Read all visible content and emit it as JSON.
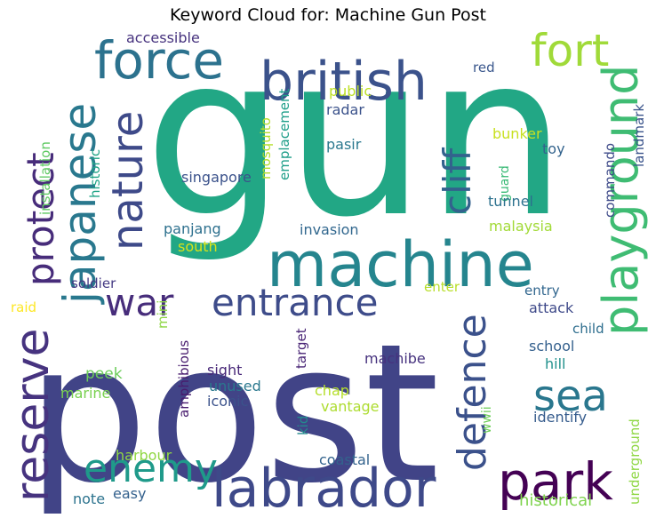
{
  "title": "Keyword Cloud for: Machine Gun Post",
  "words": [
    {
      "text": "gun",
      "color": "#22a785"
    },
    {
      "text": "post",
      "color": "#414487"
    },
    {
      "text": "machine",
      "color": "#25858e"
    },
    {
      "text": "british",
      "color": "#3b528b"
    },
    {
      "text": "force",
      "color": "#2c728e"
    },
    {
      "text": "fort",
      "color": "#a0da39"
    },
    {
      "text": "japanese",
      "color": "#29788e"
    },
    {
      "text": "nature",
      "color": "#3e4a89"
    },
    {
      "text": "protect",
      "color": "#472c7a"
    },
    {
      "text": "cliff",
      "color": "#33628d"
    },
    {
      "text": "playground",
      "color": "#3fbc73"
    },
    {
      "text": "war",
      "color": "#472d7b"
    },
    {
      "text": "entrance",
      "color": "#3e4c8a"
    },
    {
      "text": "reserve",
      "color": "#46337f"
    },
    {
      "text": "sea",
      "color": "#2a778e"
    },
    {
      "text": "defence",
      "color": "#3b518b"
    },
    {
      "text": "enemy",
      "color": "#1f9a8a"
    },
    {
      "text": "labrador",
      "color": "#3e4989"
    },
    {
      "text": "park",
      "color": "#440154"
    },
    {
      "text": "accessible",
      "color": "#46327e"
    },
    {
      "text": "installation",
      "color": "#5ec962"
    },
    {
      "text": "historic",
      "color": "#20a486"
    },
    {
      "text": "red",
      "color": "#39568c"
    },
    {
      "text": "landmark",
      "color": "#3a538b"
    },
    {
      "text": "public",
      "color": "#bddf26"
    },
    {
      "text": "radar",
      "color": "#3b528b"
    },
    {
      "text": "emplacement",
      "color": "#1f9e89"
    },
    {
      "text": "mosquito",
      "color": "#b5de2b"
    },
    {
      "text": "pasir",
      "color": "#2a788e"
    },
    {
      "text": "bunker",
      "color": "#c8e020"
    },
    {
      "text": "toy",
      "color": "#33638d"
    },
    {
      "text": "commando",
      "color": "#3e4a89"
    },
    {
      "text": "guard",
      "color": "#3aba76"
    },
    {
      "text": "singapore",
      "color": "#3b528b"
    },
    {
      "text": "tunnel",
      "color": "#2c718e"
    },
    {
      "text": "panjang",
      "color": "#2d708e"
    },
    {
      "text": "invasion",
      "color": "#31678e"
    },
    {
      "text": "malaysia",
      "color": "#a2da37"
    },
    {
      "text": "south",
      "color": "#d8e219"
    },
    {
      "text": "soldier",
      "color": "#443983"
    },
    {
      "text": "enter",
      "color": "#b8de29"
    },
    {
      "text": "entry",
      "color": "#31668e"
    },
    {
      "text": "raid",
      "color": "#fde725"
    },
    {
      "text": "mini",
      "color": "#8ed645"
    },
    {
      "text": "attack",
      "color": "#3e4989"
    },
    {
      "text": "child",
      "color": "#2e6e8e"
    },
    {
      "text": "target",
      "color": "#482475"
    },
    {
      "text": "school",
      "color": "#34608d"
    },
    {
      "text": "peek",
      "color": "#6ccd5a"
    },
    {
      "text": "sight",
      "color": "#482878"
    },
    {
      "text": "machibe",
      "color": "#46327e"
    },
    {
      "text": "hill",
      "color": "#21918c"
    },
    {
      "text": "unused",
      "color": "#2a788e"
    },
    {
      "text": "marine",
      "color": "#7ad151"
    },
    {
      "text": "amphibious",
      "color": "#481c6e"
    },
    {
      "text": "iconic",
      "color": "#3b528b"
    },
    {
      "text": "chap",
      "color": "#b5de2b"
    },
    {
      "text": "wwii",
      "color": "#6ece58"
    },
    {
      "text": "vantage",
      "color": "#addc30"
    },
    {
      "text": "identify",
      "color": "#365c8d"
    },
    {
      "text": "kid",
      "color": "#238a8d"
    },
    {
      "text": "underground",
      "color": "#8fd744"
    },
    {
      "text": "harbour",
      "color": "#90d743"
    },
    {
      "text": "coastal",
      "color": "#33638d"
    },
    {
      "text": "easy",
      "color": "#34618d"
    },
    {
      "text": "note",
      "color": "#2c738e"
    },
    {
      "text": "historical",
      "color": "#7fd34e"
    }
  ]
}
